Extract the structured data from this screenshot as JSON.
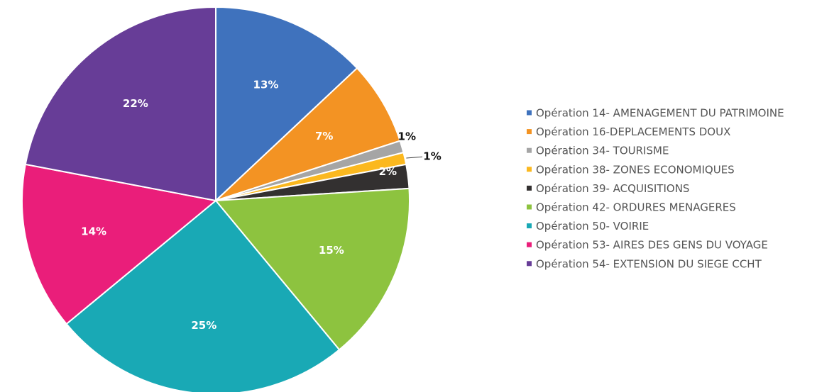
{
  "chart_data": {
    "type": "pie",
    "categories": [
      "Opération 14- AMENAGEMENT DU PATRIMOINE",
      "Opération 16-DEPLACEMENTS DOUX",
      "Opération 34- TOURISME",
      "Opération 38- ZONES ECONOMIQUES",
      "Opération 39- ACQUISITIONS",
      "Opération 42- ORDURES MENAGERES",
      "Opération 50- VOIRIE",
      "Opération 53- AIRES DES GENS DU VOYAGE",
      "Opération 54- EXTENSION DU SIEGE CCHT"
    ],
    "values": [
      13,
      7,
      1,
      1,
      2,
      15,
      25,
      14,
      22
    ],
    "value_labels": [
      "13%",
      "7%",
      "1%",
      "1%",
      "2%",
      "15%",
      "25%",
      "14%",
      "22%"
    ],
    "colors": [
      "#3f72bd",
      "#f39323",
      "#a5a5a5",
      "#fbb81f",
      "#333030",
      "#8dc33f",
      "#19a9b5",
      "#ea1e7a",
      "#673d97"
    ],
    "legend": "right"
  }
}
